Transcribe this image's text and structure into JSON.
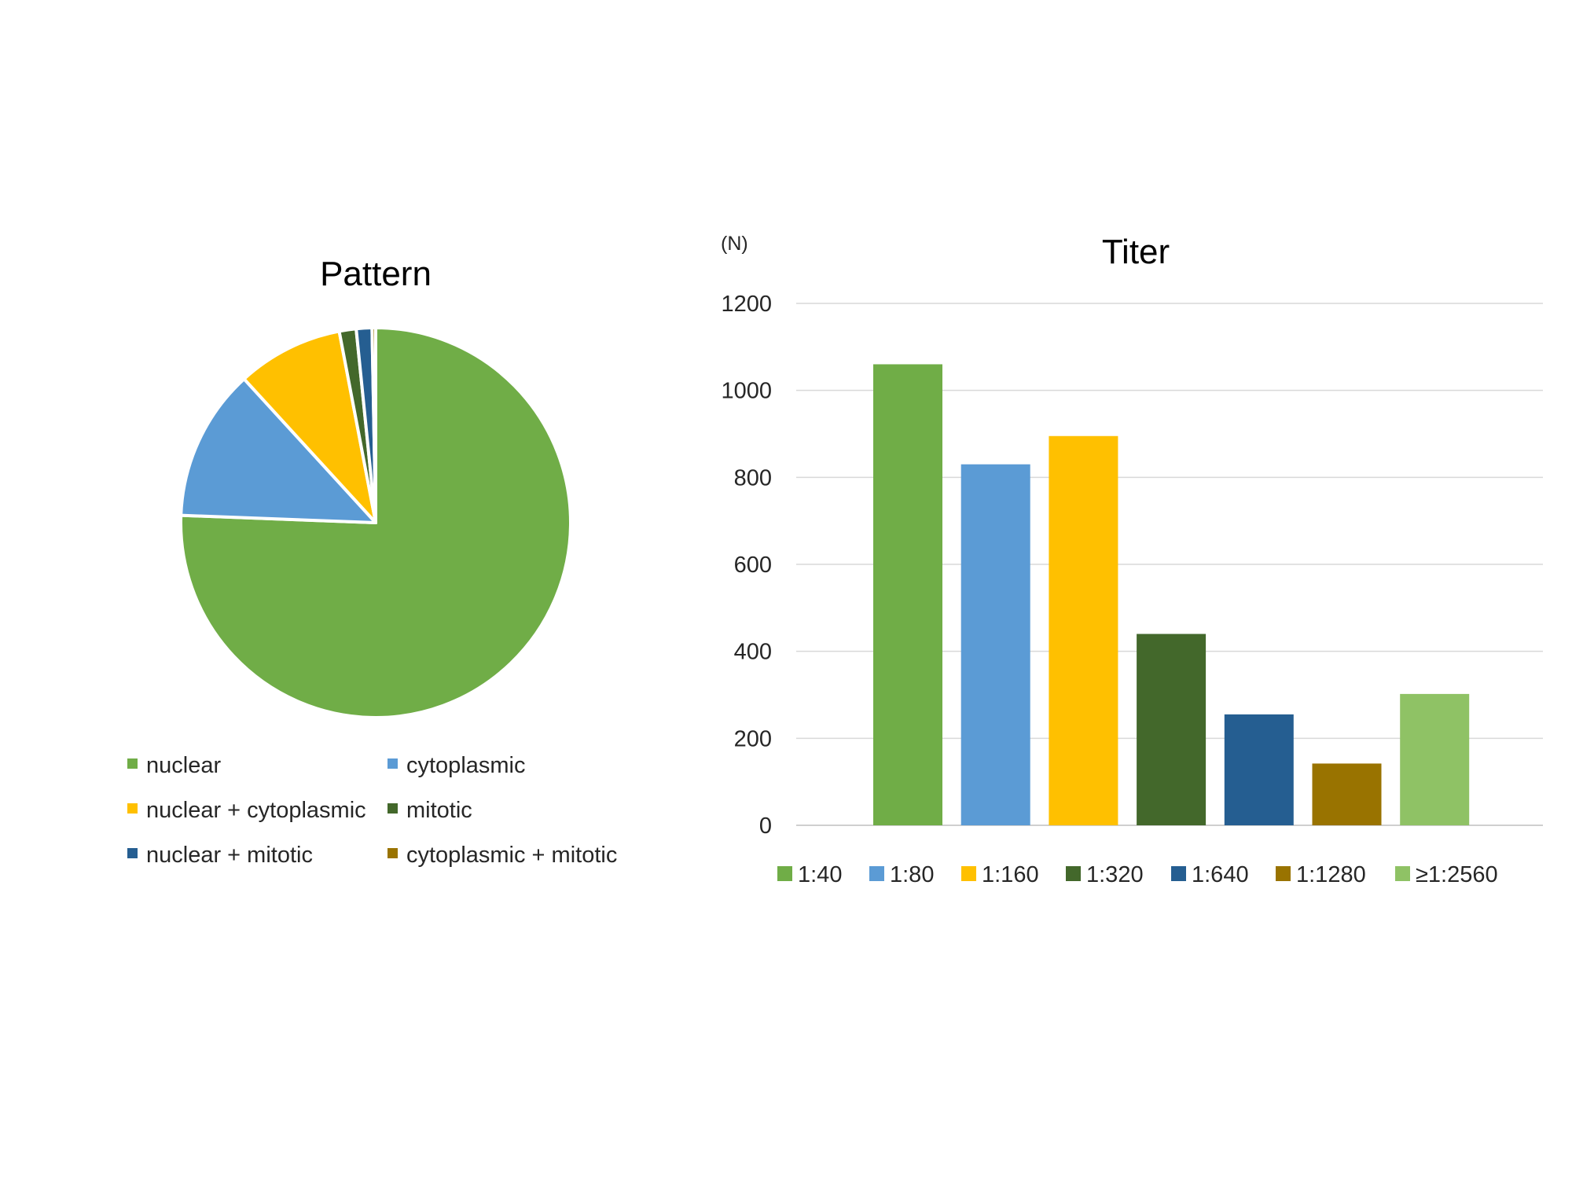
{
  "chart_data": [
    {
      "type": "pie",
      "title": "Pattern",
      "slices": [
        {
          "label": "nuclear",
          "value": 75.6,
          "color": "#70AD47"
        },
        {
          "label": "cytoplasmic",
          "value": 12.6,
          "color": "#5B9BD5"
        },
        {
          "label": "nuclear + cytoplasmic",
          "value": 8.8,
          "color": "#FFC000"
        },
        {
          "label": "mitotic",
          "value": 1.4,
          "color": "#43682B"
        },
        {
          "label": "nuclear + mitotic",
          "value": 1.3,
          "color": "#255E91"
        },
        {
          "label": "cytoplasmic + mitotic",
          "value": 0.3,
          "color": "#997300"
        }
      ],
      "legend": "bottom"
    },
    {
      "type": "bar",
      "title": "Titer",
      "ylabel": "(N)",
      "categories": [
        "1:40",
        "1:80",
        "1:160",
        "1:320",
        "1:640",
        "1:1280",
        "≥1:2560"
      ],
      "values": [
        1060,
        830,
        895,
        440,
        255,
        142,
        302
      ],
      "colors": [
        "#70AD47",
        "#5B9BD5",
        "#FFC000",
        "#43682B",
        "#255E91",
        "#997300",
        "#8FC265"
      ],
      "ylim": [
        0,
        1200
      ],
      "yticks": [
        "0",
        "200",
        "400",
        "600",
        "800",
        "1000",
        "1200"
      ],
      "grid": true,
      "legend": "bottom"
    }
  ]
}
